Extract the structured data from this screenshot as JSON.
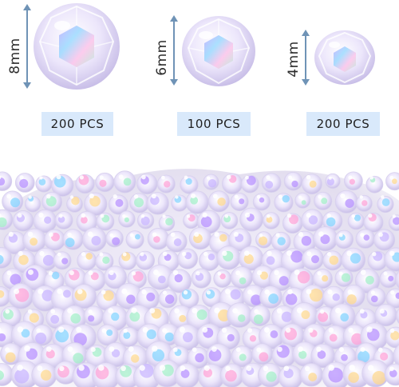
{
  "sizes": [
    {
      "size_label": "8mm",
      "count_label": "200 PCS"
    },
    {
      "size_label": "6mm",
      "count_label": "100 PCS"
    },
    {
      "size_label": "4mm",
      "count_label": "200 PCS"
    }
  ],
  "colors": {
    "badge_bg": "#d9e9fb",
    "arrow": "#6f93b6",
    "bead_tint": "#e7dcff"
  }
}
